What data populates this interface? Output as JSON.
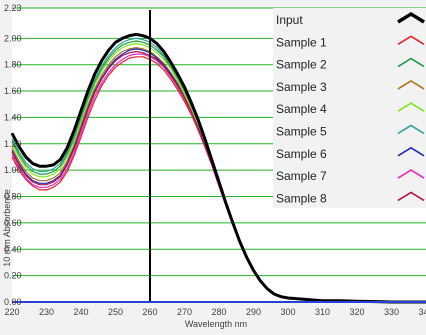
{
  "chart_data": {
    "type": "line",
    "title": "",
    "xlabel": "Wavelength nm",
    "ylabel": "10 mm Absorbence",
    "xlim": [
      220,
      340
    ],
    "ylim": [
      0,
      2.23
    ],
    "x_ticks": [
      220,
      230,
      240,
      250,
      260,
      270,
      280,
      290,
      300,
      310,
      320,
      330,
      340
    ],
    "x_tick_labels": [
      "220",
      "230",
      "240",
      "250",
      "260",
      "270",
      "280",
      "290",
      "300",
      "310",
      "320",
      "330",
      "340"
    ],
    "y_ticks": [
      0.0,
      0.2,
      0.4,
      0.6,
      0.8,
      1.0,
      1.2,
      1.4,
      1.6,
      1.8,
      2.0,
      2.23
    ],
    "y_tick_labels": [
      "0.00",
      "0.20",
      "0.40",
      "0.60",
      "0.80",
      "1.00",
      "1.20",
      "1.40",
      "1.60",
      "1.80",
      "2.00",
      "2.23"
    ],
    "grid": "horizontal",
    "grid_color": "#22b422",
    "vertical_marker": 260,
    "legend_position": "top-right",
    "x": [
      220,
      222,
      224,
      226,
      228,
      230,
      232,
      234,
      236,
      238,
      240,
      242,
      244,
      246,
      248,
      250,
      252,
      254,
      256,
      258,
      260,
      262,
      264,
      266,
      268,
      270,
      272,
      274,
      276,
      278,
      280,
      282,
      284,
      286,
      288,
      290,
      292,
      294,
      296,
      298,
      300,
      305,
      310,
      315,
      320,
      330,
      340
    ],
    "series": [
      {
        "name": "Input",
        "color": "#000000",
        "width": 3,
        "values": [
          1.28,
          1.18,
          1.1,
          1.05,
          1.03,
          1.03,
          1.04,
          1.08,
          1.17,
          1.3,
          1.45,
          1.6,
          1.73,
          1.83,
          1.91,
          1.97,
          2.0,
          2.02,
          2.03,
          2.02,
          2.0,
          1.96,
          1.9,
          1.82,
          1.73,
          1.63,
          1.51,
          1.38,
          1.23,
          1.07,
          0.91,
          0.75,
          0.6,
          0.46,
          0.34,
          0.24,
          0.16,
          0.1,
          0.06,
          0.04,
          0.03,
          0.02,
          0.01,
          0.01,
          0.005,
          0.0,
          0.0
        ]
      },
      {
        "name": "Sample 1",
        "color": "#e8202a",
        "width": 1.2,
        "values": [
          1.1,
          1.0,
          0.93,
          0.88,
          0.85,
          0.85,
          0.87,
          0.91,
          0.99,
          1.11,
          1.25,
          1.4,
          1.53,
          1.64,
          1.72,
          1.78,
          1.82,
          1.85,
          1.86,
          1.86,
          1.84,
          1.81,
          1.76,
          1.69,
          1.61,
          1.52,
          1.42,
          1.3,
          1.17,
          1.03,
          0.88,
          0.73,
          0.59,
          0.46,
          0.34,
          0.24,
          0.16,
          0.1,
          0.06,
          0.04,
          0.03,
          0.02,
          0.01,
          0.01,
          0.005,
          0.0,
          0.0
        ]
      },
      {
        "name": "Sample 2",
        "color": "#1f9a4a",
        "width": 1.2,
        "values": [
          1.22,
          1.12,
          1.04,
          0.99,
          0.97,
          0.97,
          0.99,
          1.03,
          1.12,
          1.24,
          1.39,
          1.54,
          1.67,
          1.77,
          1.85,
          1.91,
          1.95,
          1.97,
          1.98,
          1.97,
          1.95,
          1.91,
          1.86,
          1.78,
          1.7,
          1.6,
          1.48,
          1.35,
          1.21,
          1.06,
          0.9,
          0.74,
          0.59,
          0.46,
          0.34,
          0.24,
          0.16,
          0.1,
          0.06,
          0.04,
          0.03,
          0.02,
          0.01,
          0.01,
          0.005,
          0.0,
          0.0
        ]
      },
      {
        "name": "Sample 3",
        "color": "#a8731c",
        "width": 1.2,
        "values": [
          1.17,
          1.07,
          0.99,
          0.94,
          0.92,
          0.92,
          0.94,
          0.98,
          1.07,
          1.19,
          1.34,
          1.49,
          1.62,
          1.72,
          1.8,
          1.86,
          1.9,
          1.92,
          1.93,
          1.92,
          1.9,
          1.86,
          1.81,
          1.74,
          1.66,
          1.56,
          1.45,
          1.32,
          1.19,
          1.04,
          0.89,
          0.74,
          0.59,
          0.46,
          0.34,
          0.24,
          0.16,
          0.1,
          0.06,
          0.04,
          0.03,
          0.02,
          0.01,
          0.01,
          0.005,
          0.0,
          0.0
        ]
      },
      {
        "name": "Sample 4",
        "color": "#7ee61a",
        "width": 1.2,
        "values": [
          1.2,
          1.1,
          1.02,
          0.97,
          0.95,
          0.95,
          0.97,
          1.01,
          1.1,
          1.22,
          1.37,
          1.52,
          1.65,
          1.75,
          1.83,
          1.89,
          1.93,
          1.95,
          1.96,
          1.95,
          1.93,
          1.89,
          1.84,
          1.77,
          1.68,
          1.58,
          1.47,
          1.34,
          1.2,
          1.05,
          0.9,
          0.74,
          0.59,
          0.46,
          0.34,
          0.24,
          0.16,
          0.1,
          0.06,
          0.04,
          0.03,
          0.02,
          0.01,
          0.01,
          0.005,
          0.0,
          0.0
        ]
      },
      {
        "name": "Sample 5",
        "color": "#2aa39a",
        "width": 1.2,
        "values": [
          1.24,
          1.14,
          1.06,
          1.01,
          0.99,
          0.99,
          1.01,
          1.05,
          1.14,
          1.26,
          1.41,
          1.56,
          1.69,
          1.79,
          1.87,
          1.93,
          1.97,
          1.99,
          2.0,
          1.99,
          1.97,
          1.93,
          1.87,
          1.8,
          1.71,
          1.61,
          1.49,
          1.36,
          1.22,
          1.06,
          0.91,
          0.75,
          0.6,
          0.46,
          0.34,
          0.24,
          0.16,
          0.1,
          0.06,
          0.04,
          0.03,
          0.02,
          0.01,
          0.01,
          0.005,
          0.0,
          0.0
        ]
      },
      {
        "name": "Sample 6",
        "color": "#1c2ab4",
        "width": 1.2,
        "values": [
          1.15,
          1.05,
          0.97,
          0.92,
          0.9,
          0.9,
          0.92,
          0.96,
          1.05,
          1.17,
          1.32,
          1.47,
          1.6,
          1.7,
          1.78,
          1.84,
          1.88,
          1.91,
          1.92,
          1.91,
          1.89,
          1.85,
          1.8,
          1.73,
          1.65,
          1.55,
          1.44,
          1.32,
          1.18,
          1.04,
          0.89,
          0.74,
          0.59,
          0.46,
          0.34,
          0.24,
          0.16,
          0.1,
          0.06,
          0.04,
          0.03,
          0.02,
          0.01,
          0.01,
          0.005,
          0.0,
          0.0
        ]
      },
      {
        "name": "Sample 7",
        "color": "#e629c4",
        "width": 1.2,
        "values": [
          1.12,
          1.02,
          0.94,
          0.89,
          0.87,
          0.87,
          0.89,
          0.93,
          1.01,
          1.13,
          1.28,
          1.43,
          1.56,
          1.66,
          1.74,
          1.8,
          1.84,
          1.87,
          1.88,
          1.88,
          1.86,
          1.83,
          1.78,
          1.71,
          1.63,
          1.54,
          1.43,
          1.31,
          1.18,
          1.03,
          0.88,
          0.73,
          0.59,
          0.46,
          0.34,
          0.24,
          0.16,
          0.1,
          0.06,
          0.04,
          0.03,
          0.02,
          0.01,
          0.01,
          0.005,
          0.0,
          0.0
        ]
      },
      {
        "name": "Sample 8",
        "color": "#b0134a",
        "width": 1.2,
        "values": [
          1.14,
          1.04,
          0.96,
          0.91,
          0.89,
          0.89,
          0.91,
          0.95,
          1.04,
          1.16,
          1.31,
          1.46,
          1.59,
          1.69,
          1.77,
          1.83,
          1.87,
          1.89,
          1.9,
          1.89,
          1.87,
          1.84,
          1.79,
          1.72,
          1.64,
          1.55,
          1.44,
          1.32,
          1.18,
          1.04,
          0.89,
          0.74,
          0.59,
          0.46,
          0.34,
          0.24,
          0.16,
          0.1,
          0.06,
          0.04,
          0.03,
          0.02,
          0.01,
          0.01,
          0.005,
          0.0,
          0.0
        ]
      }
    ]
  }
}
